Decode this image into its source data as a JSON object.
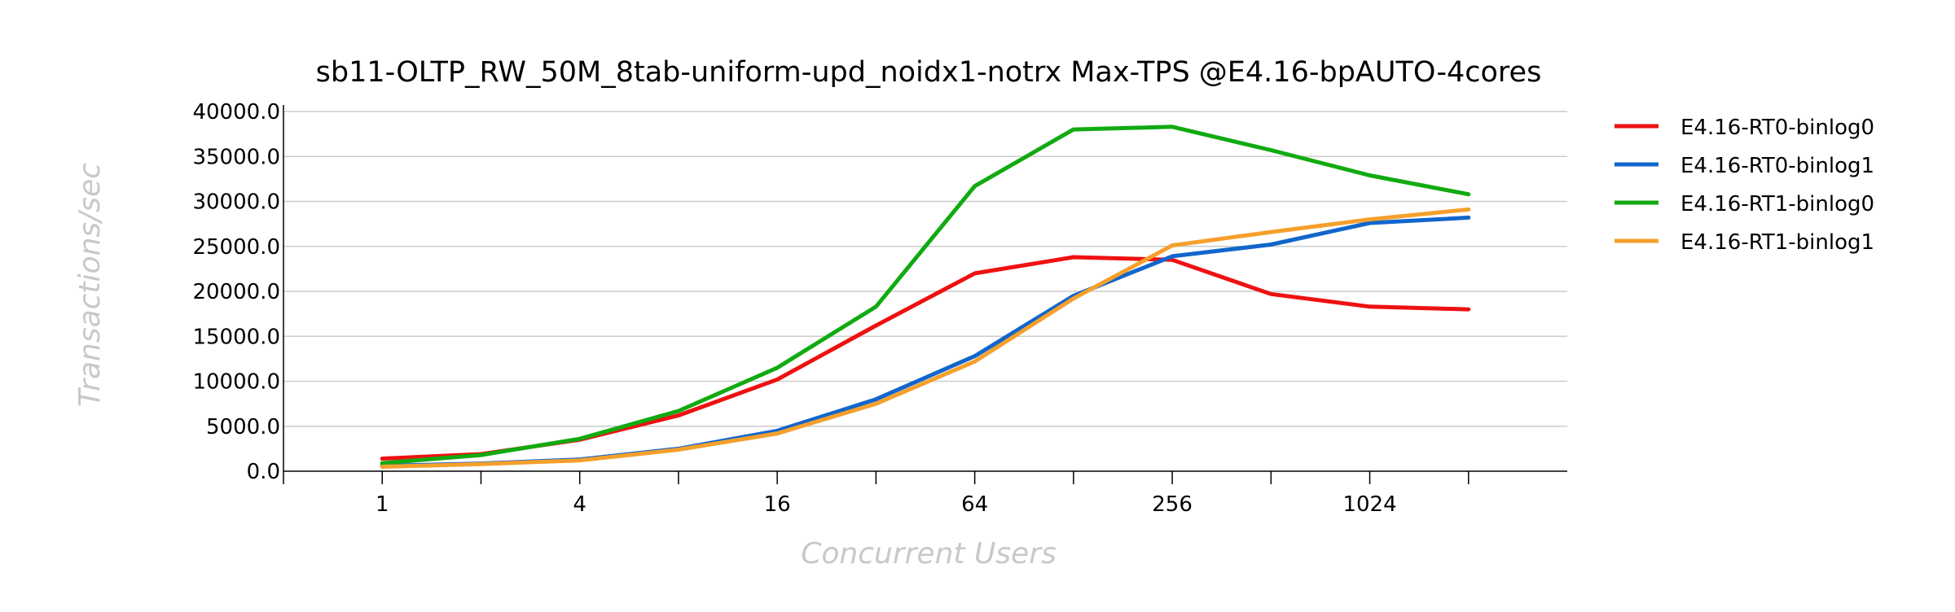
{
  "chart_data": {
    "type": "line",
    "title": "sb11-OLTP_RW_50M_8tab-uniform-upd_noidx1-notrx Max-TPS @E4.16-bpAUTO-4cores",
    "xlabel": "Concurrent Users",
    "ylabel": "Transactions/sec",
    "x_scale": "log2",
    "x": [
      1,
      2,
      4,
      8,
      16,
      32,
      64,
      128,
      256,
      512,
      1024,
      2048
    ],
    "x_tick_values": [
      1,
      4,
      16,
      64,
      256,
      1024
    ],
    "x_tick_labels": [
      "1",
      "4",
      "16",
      "64",
      "256",
      "1024"
    ],
    "xlim": [
      0.5,
      4096
    ],
    "ylim": [
      0,
      40000
    ],
    "y_ticks": [
      0,
      5000,
      10000,
      15000,
      20000,
      25000,
      30000,
      35000,
      40000
    ],
    "y_tick_labels": [
      "0.0",
      "5000.0",
      "10000.0",
      "15000.0",
      "20000.0",
      "25000.0",
      "30000.0",
      "35000.0",
      "40000.0"
    ],
    "grid": "horizontal",
    "legend_position": "right",
    "series": [
      {
        "name": "E4.16-RT0-binlog0",
        "color": "#ee1111",
        "values": [
          1400,
          1900,
          3500,
          6200,
          10200,
          16200,
          22000,
          23800,
          23500,
          19700,
          18300,
          18000
        ]
      },
      {
        "name": "E4.16-RT0-binlog1",
        "color": "#1166cc",
        "values": [
          600,
          850,
          1300,
          2500,
          4500,
          8000,
          12800,
          19500,
          23900,
          25200,
          27600,
          28200
        ]
      },
      {
        "name": "E4.16-RT1-binlog0",
        "color": "#11aa11",
        "values": [
          900,
          1800,
          3600,
          6700,
          11500,
          18300,
          31700,
          38000,
          38300,
          35700,
          32900,
          30800
        ]
      },
      {
        "name": "E4.16-RT1-binlog1",
        "color": "#f5a02c",
        "values": [
          500,
          800,
          1200,
          2400,
          4200,
          7500,
          12200,
          19200,
          25100,
          26600,
          28000,
          29100
        ]
      }
    ]
  }
}
